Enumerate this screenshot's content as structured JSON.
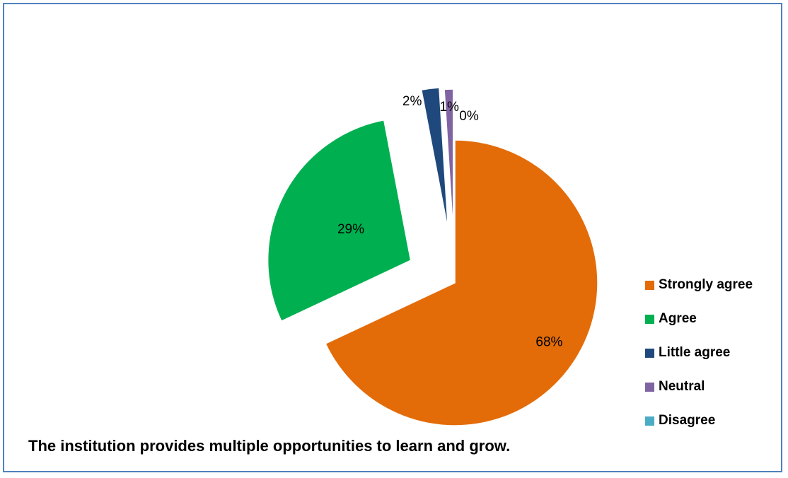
{
  "chart_data": {
    "type": "pie",
    "title": "The institution provides multiple opportunities to learn and grow.",
    "legend_position": "right",
    "slices": [
      {
        "name": "Strongly agree",
        "value": 68,
        "label": "68%",
        "color": "#e36c09"
      },
      {
        "name": "Agree",
        "value": 29,
        "label": "29%",
        "color": "#00b050"
      },
      {
        "name": "Little agree",
        "value": 2,
        "label": "2%",
        "color": "#1f497d"
      },
      {
        "name": "Neutral",
        "value": 1,
        "label": "1%",
        "color": "#8064a2"
      },
      {
        "name": "Disagree",
        "value": 0,
        "label": "0%",
        "color": "#4bacc6"
      }
    ]
  }
}
